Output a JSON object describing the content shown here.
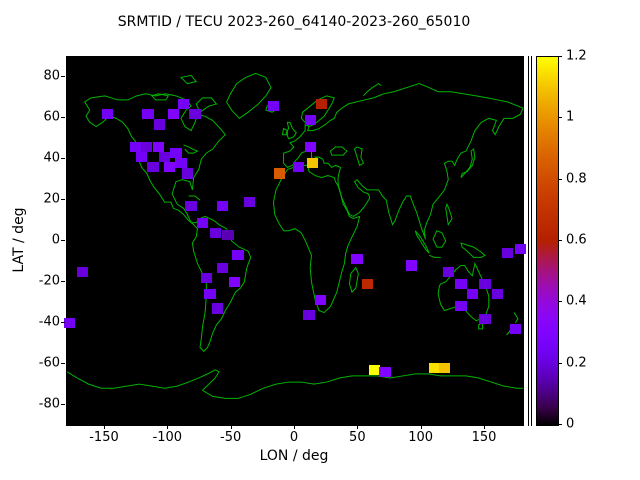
{
  "figure": {
    "background": "#ffffff",
    "map_background": "#000000",
    "coastline_color": "#00b400"
  },
  "chart_data": {
    "type": "heatmap",
    "title": "SRMTID / TECU 2023-260_64140-2023-260_65010",
    "xlabel": "LON / deg",
    "ylabel": "LAT / deg",
    "xlim": [
      -180,
      180
    ],
    "ylim": [
      -90,
      90
    ],
    "xticks": [
      -150,
      -100,
      -50,
      0,
      50,
      100,
      150
    ],
    "yticks": [
      -80,
      -60,
      -40,
      -20,
      0,
      20,
      40,
      60,
      80
    ],
    "colorbar": {
      "min": 0,
      "max": 1.2,
      "ticks": [
        0,
        0.2,
        0.4,
        0.6,
        0.8,
        1,
        1.2
      ],
      "palette": "gnuplot-pm3d black-purple-red-orange-yellow"
    },
    "cell_size_deg": {
      "lon": 9,
      "lat": 5
    },
    "cells": [
      {
        "lon": -148,
        "lat": 62,
        "v": 0.25
      },
      {
        "lon": -116,
        "lat": 62,
        "v": 0.25
      },
      {
        "lon": -107,
        "lat": 57,
        "v": 0.2
      },
      {
        "lon": -96,
        "lat": 62,
        "v": 0.3
      },
      {
        "lon": -88,
        "lat": 67,
        "v": 0.25
      },
      {
        "lon": -79,
        "lat": 62,
        "v": 0.2
      },
      {
        "lon": -17,
        "lat": 66,
        "v": 0.25
      },
      {
        "lon": 21,
        "lat": 67,
        "v": 0.6
      },
      {
        "lon": 12,
        "lat": 59,
        "v": 0.25
      },
      {
        "lon": -126,
        "lat": 46,
        "v": 0.25
      },
      {
        "lon": -117,
        "lat": 46,
        "v": 0.2
      },
      {
        "lon": -108,
        "lat": 46,
        "v": 0.3
      },
      {
        "lon": -94,
        "lat": 43,
        "v": 0.25
      },
      {
        "lon": -121,
        "lat": 41,
        "v": 0.25
      },
      {
        "lon": -103,
        "lat": 41,
        "v": 0.2
      },
      {
        "lon": -112,
        "lat": 36,
        "v": 0.2
      },
      {
        "lon": -99,
        "lat": 36,
        "v": 0.3
      },
      {
        "lon": -90,
        "lat": 38,
        "v": 0.25
      },
      {
        "lon": -85,
        "lat": 33,
        "v": 0.2
      },
      {
        "lon": 12,
        "lat": 46,
        "v": 0.3
      },
      {
        "lon": 14,
        "lat": 38,
        "v": 1.1
      },
      {
        "lon": 3,
        "lat": 36,
        "v": 0.25
      },
      {
        "lon": -12,
        "lat": 33,
        "v": 0.85
      },
      {
        "lon": -57,
        "lat": 17,
        "v": 0.25
      },
      {
        "lon": -36,
        "lat": 19,
        "v": 0.2
      },
      {
        "lon": -82,
        "lat": 17,
        "v": 0.2
      },
      {
        "lon": -73,
        "lat": 9,
        "v": 0.25
      },
      {
        "lon": -63,
        "lat": 4,
        "v": 0.2
      },
      {
        "lon": -53,
        "lat": 3,
        "v": 0.15
      },
      {
        "lon": -45,
        "lat": -7,
        "v": 0.25
      },
      {
        "lon": -57,
        "lat": -13,
        "v": 0.2
      },
      {
        "lon": -70,
        "lat": -18,
        "v": 0.2
      },
      {
        "lon": -48,
        "lat": -20,
        "v": 0.3
      },
      {
        "lon": -67,
        "lat": -26,
        "v": 0.25
      },
      {
        "lon": -61,
        "lat": -33,
        "v": 0.2
      },
      {
        "lon": -168,
        "lat": -15,
        "v": 0.2
      },
      {
        "lon": -178,
        "lat": -40,
        "v": 0.25
      },
      {
        "lon": 20,
        "lat": -29,
        "v": 0.3
      },
      {
        "lon": 11,
        "lat": -36,
        "v": 0.2
      },
      {
        "lon": 49,
        "lat": -9,
        "v": 0.3
      },
      {
        "lon": 57,
        "lat": -21,
        "v": 0.65
      },
      {
        "lon": 92,
        "lat": -12,
        "v": 0.3
      },
      {
        "lon": 168,
        "lat": -6,
        "v": 0.2
      },
      {
        "lon": 178,
        "lat": -4,
        "v": 0.25
      },
      {
        "lon": 121,
        "lat": -15,
        "v": 0.2
      },
      {
        "lon": 131,
        "lat": -21,
        "v": 0.25
      },
      {
        "lon": 150,
        "lat": -21,
        "v": 0.2
      },
      {
        "lon": 140,
        "lat": -26,
        "v": 0.25
      },
      {
        "lon": 160,
        "lat": -26,
        "v": 0.2
      },
      {
        "lon": 131,
        "lat": -32,
        "v": 0.25
      },
      {
        "lon": 150,
        "lat": -38,
        "v": 0.2
      },
      {
        "lon": 174,
        "lat": -43,
        "v": 0.25
      },
      {
        "lon": 63,
        "lat": -63,
        "v": 1.2
      },
      {
        "lon": 71,
        "lat": -64,
        "v": 0.3
      },
      {
        "lon": 110,
        "lat": -62,
        "v": 1.15
      },
      {
        "lon": 118,
        "lat": -62,
        "v": 1.1
      }
    ]
  }
}
